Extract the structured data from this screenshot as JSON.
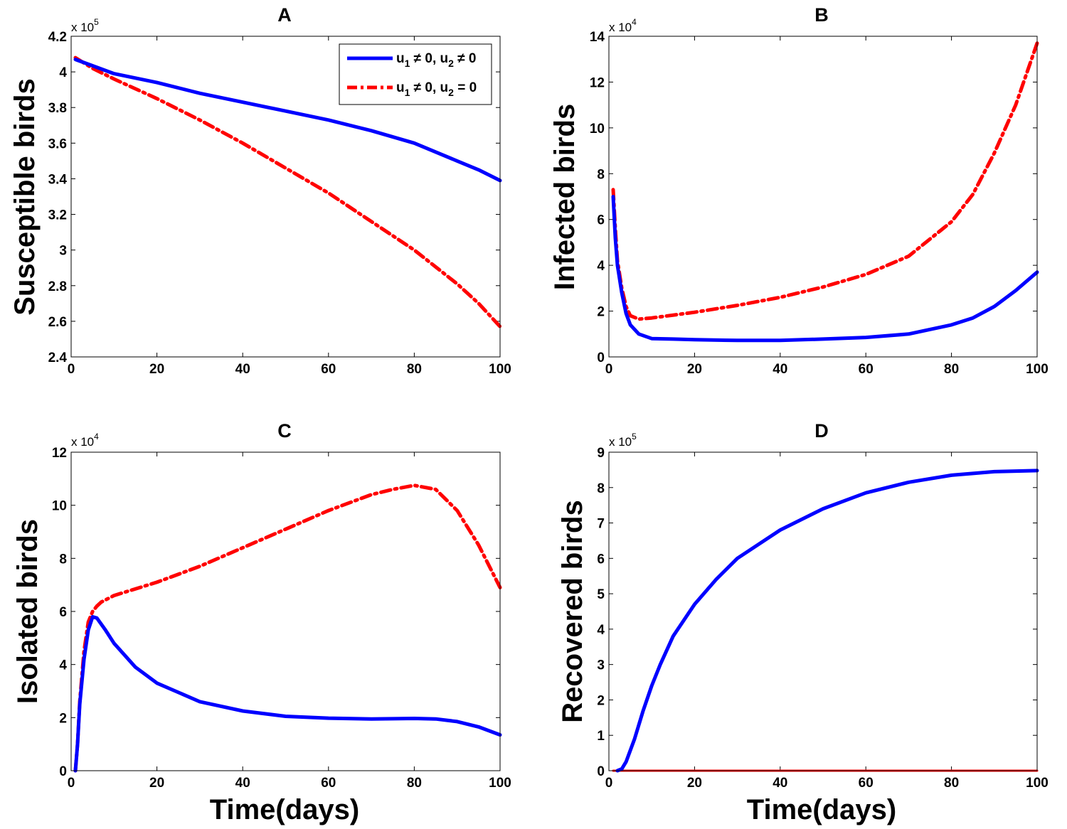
{
  "chart_data": [
    {
      "type": "line",
      "title": "A",
      "xlabel": "",
      "ylabel": "Susceptible birds",
      "xlim": [
        0,
        100
      ],
      "ylim": [
        2.4,
        4.2
      ],
      "multiplier": {
        "base": "x 10",
        "exp": "5"
      },
      "xticks": [
        0,
        20,
        40,
        60,
        80,
        100
      ],
      "yticks": [
        2.4,
        2.6,
        2.8,
        3,
        3.2,
        3.4,
        3.6,
        3.8,
        4,
        4.2
      ],
      "legend": {
        "position": "top-right",
        "entries": [
          {
            "u1": "u",
            "s1": "1",
            "r1": " ≠ 0, u",
            "s2": "2",
            "r2": " ≠ 0"
          },
          {
            "u1": "u",
            "s1": "1",
            "r1": " ≠ 0, u",
            "s2": "2",
            "r2": " = 0"
          }
        ]
      },
      "series": [
        {
          "name": "u1 ≠ 0, u2 ≠ 0",
          "color": "#0000ff",
          "style": "solid",
          "x": [
            1,
            10,
            20,
            30,
            40,
            50,
            60,
            70,
            80,
            90,
            95,
            100
          ],
          "values": [
            4.07,
            3.99,
            3.94,
            3.88,
            3.83,
            3.78,
            3.73,
            3.67,
            3.6,
            3.5,
            3.45,
            3.39
          ]
        },
        {
          "name": "u1 ≠ 0, u2 = 0",
          "color": "#ff0000",
          "style": "dashdot",
          "x": [
            1,
            5,
            10,
            20,
            30,
            40,
            50,
            60,
            70,
            80,
            90,
            95,
            100
          ],
          "values": [
            4.08,
            4.02,
            3.96,
            3.85,
            3.73,
            3.6,
            3.46,
            3.32,
            3.16,
            3.0,
            2.81,
            2.7,
            2.57
          ]
        }
      ]
    },
    {
      "type": "line",
      "title": "B",
      "xlabel": "",
      "ylabel": "Infected birds",
      "xlim": [
        0,
        100
      ],
      "ylim": [
        0,
        14
      ],
      "multiplier": {
        "base": "x 10",
        "exp": "4"
      },
      "xticks": [
        0,
        20,
        40,
        60,
        80,
        100
      ],
      "yticks": [
        0,
        2,
        4,
        6,
        8,
        10,
        12,
        14
      ],
      "series": [
        {
          "name": "u1 ≠ 0, u2 ≠ 0",
          "color": "#0000ff",
          "style": "solid",
          "x": [
            1,
            1.5,
            2,
            3,
            4,
            5,
            7,
            10,
            15,
            20,
            30,
            40,
            50,
            60,
            70,
            80,
            85,
            90,
            95,
            100
          ],
          "values": [
            7.0,
            5.2,
            4.0,
            2.8,
            1.9,
            1.4,
            1.0,
            0.8,
            0.78,
            0.75,
            0.72,
            0.72,
            0.78,
            0.85,
            1.0,
            1.4,
            1.7,
            2.2,
            2.9,
            3.7
          ]
        },
        {
          "name": "u1 ≠ 0, u2 = 0",
          "color": "#ff0000",
          "style": "dashdot",
          "x": [
            1,
            1.5,
            2,
            3,
            4,
            5,
            7,
            10,
            20,
            30,
            40,
            50,
            60,
            70,
            80,
            85,
            90,
            95,
            100
          ],
          "values": [
            7.3,
            5.6,
            4.2,
            3.0,
            2.2,
            1.8,
            1.65,
            1.7,
            1.95,
            2.25,
            2.6,
            3.05,
            3.6,
            4.4,
            5.9,
            7.1,
            8.9,
            11.0,
            13.7
          ]
        }
      ]
    },
    {
      "type": "line",
      "title": "C",
      "xlabel": "Time(days)",
      "ylabel": "Isolated birds",
      "xlim": [
        0,
        100
      ],
      "ylim": [
        0,
        12
      ],
      "multiplier": {
        "base": "x 10",
        "exp": "4"
      },
      "xticks": [
        0,
        20,
        40,
        60,
        80,
        100
      ],
      "yticks": [
        0,
        2,
        4,
        6,
        8,
        10,
        12
      ],
      "series": [
        {
          "name": "u1 ≠ 0, u2 ≠ 0",
          "color": "#0000ff",
          "style": "solid",
          "x": [
            1,
            1.5,
            2,
            3,
            4,
            5,
            6,
            8,
            10,
            15,
            20,
            30,
            40,
            50,
            60,
            70,
            80,
            85,
            90,
            95,
            100
          ],
          "values": [
            0,
            1.0,
            2.5,
            4.2,
            5.3,
            5.8,
            5.75,
            5.3,
            4.8,
            3.9,
            3.3,
            2.6,
            2.25,
            2.05,
            1.98,
            1.95,
            1.97,
            1.95,
            1.85,
            1.65,
            1.35
          ]
        },
        {
          "name": "u1 ≠ 0, u2 = 0",
          "color": "#ff0000",
          "style": "dashdot",
          "x": [
            1,
            1.5,
            2,
            3,
            4,
            5,
            6,
            7,
            10,
            20,
            30,
            40,
            50,
            60,
            70,
            75,
            80,
            85,
            90,
            95,
            100
          ],
          "values": [
            0,
            1.0,
            2.6,
            4.5,
            5.6,
            6.0,
            6.2,
            6.35,
            6.6,
            7.1,
            7.7,
            8.4,
            9.1,
            9.8,
            10.4,
            10.6,
            10.75,
            10.6,
            9.8,
            8.5,
            6.9
          ]
        }
      ]
    },
    {
      "type": "line",
      "title": "D",
      "xlabel": "Time(days)",
      "ylabel": "Recovered birds",
      "xlim": [
        0,
        100
      ],
      "ylim": [
        0,
        9
      ],
      "multiplier": {
        "base": "x 10",
        "exp": "5"
      },
      "xticks": [
        0,
        20,
        40,
        60,
        80,
        100
      ],
      "yticks": [
        0,
        1,
        2,
        3,
        4,
        5,
        6,
        7,
        8,
        9
      ],
      "series": [
        {
          "name": "u1 ≠ 0, u2 ≠ 0",
          "color": "#0000ff",
          "style": "solid",
          "x": [
            2,
            3,
            4,
            6,
            8,
            10,
            12,
            15,
            20,
            25,
            30,
            40,
            50,
            60,
            70,
            80,
            90,
            100
          ],
          "values": [
            0,
            0.05,
            0.25,
            0.9,
            1.7,
            2.4,
            3.0,
            3.8,
            4.7,
            5.4,
            6.0,
            6.8,
            7.4,
            7.85,
            8.15,
            8.35,
            8.45,
            8.48
          ]
        },
        {
          "name": "u1 ≠ 0, u2 = 0",
          "color": "#ff0000",
          "style": "solid-thin",
          "x": [
            1,
            100
          ],
          "values": [
            0,
            0
          ]
        }
      ]
    }
  ]
}
